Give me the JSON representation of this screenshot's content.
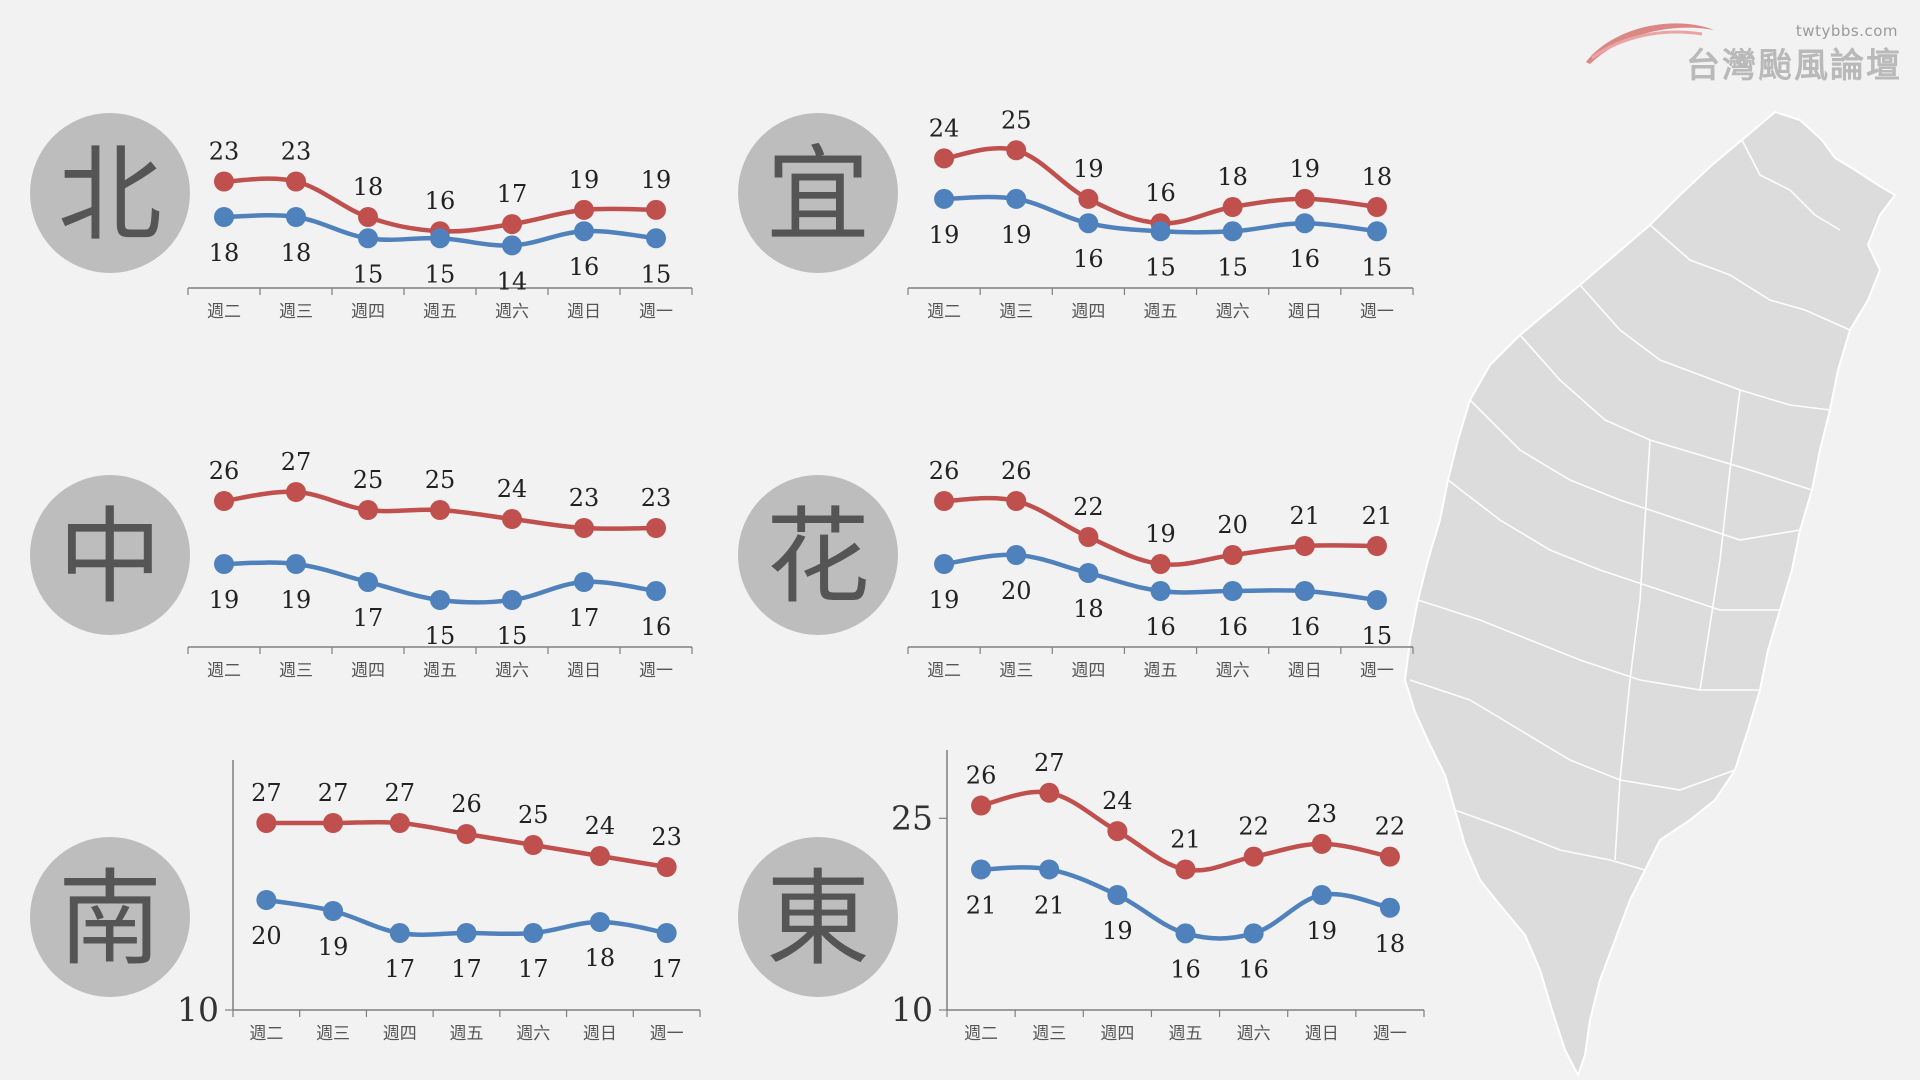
{
  "days": [
    "週二",
    "週三",
    "週四",
    "週五",
    "週六",
    "週日",
    "週一"
  ],
  "watermark": {
    "site": "twtybbs.com",
    "name": "台灣颱風論壇"
  },
  "colors": {
    "high": "#c0504d",
    "low": "#4f81bd",
    "badge": "#bdbdbd",
    "badge_text": "#555555",
    "map": "#dcdcdc"
  },
  "chart_data": [
    {
      "type": "line",
      "region": "北",
      "categories": [
        "週二",
        "週三",
        "週四",
        "週五",
        "週六",
        "週日",
        "週一"
      ],
      "series": [
        {
          "values": [
            23,
            23,
            18,
            16,
            17,
            19,
            19
          ]
        },
        {
          "values": [
            18,
            18,
            15,
            15,
            14,
            16,
            15
          ]
        }
      ],
      "ylim": [
        8,
        28
      ]
    },
    {
      "type": "line",
      "region": "宜",
      "categories": [
        "週二",
        "週三",
        "週四",
        "週五",
        "週六",
        "週日",
        "週一"
      ],
      "series": [
        {
          "values": [
            24,
            25,
            19,
            16,
            18,
            19,
            18
          ]
        },
        {
          "values": [
            19,
            19,
            16,
            15,
            15,
            16,
            15
          ]
        }
      ],
      "ylim": [
        8,
        28
      ]
    },
    {
      "type": "line",
      "region": "中",
      "categories": [
        "週二",
        "週三",
        "週四",
        "週五",
        "週六",
        "週日",
        "週一"
      ],
      "series": [
        {
          "values": [
            26,
            27,
            25,
            25,
            24,
            23,
            23
          ]
        },
        {
          "values": [
            19,
            19,
            17,
            15,
            15,
            17,
            16
          ]
        }
      ],
      "ylim": [
        10,
        30
      ]
    },
    {
      "type": "line",
      "region": "花",
      "categories": [
        "週二",
        "週三",
        "週四",
        "週五",
        "週六",
        "週日",
        "週一"
      ],
      "series": [
        {
          "values": [
            26,
            26,
            22,
            19,
            20,
            21,
            21
          ]
        },
        {
          "values": [
            19,
            20,
            18,
            16,
            16,
            16,
            15
          ]
        }
      ],
      "ylim": [
        10,
        30
      ]
    },
    {
      "type": "line",
      "region": "南",
      "categories": [
        "週二",
        "週三",
        "週四",
        "週五",
        "週六",
        "週日",
        "週一"
      ],
      "series": [
        {
          "values": [
            27,
            27,
            27,
            26,
            25,
            24,
            23
          ]
        },
        {
          "values": [
            20,
            19,
            17,
            17,
            17,
            18,
            17
          ]
        }
      ],
      "ylim": [
        10,
        30
      ],
      "yticks": [
        10
      ]
    },
    {
      "type": "line",
      "region": "東",
      "categories": [
        "週二",
        "週三",
        "週四",
        "週五",
        "週六",
        "週日",
        "週一"
      ],
      "series": [
        {
          "values": [
            26,
            27,
            24,
            21,
            22,
            23,
            22
          ]
        },
        {
          "values": [
            21,
            21,
            19,
            16,
            16,
            19,
            18
          ]
        }
      ],
      "ylim": [
        10,
        28
      ],
      "yticks": [
        10,
        25
      ]
    }
  ]
}
